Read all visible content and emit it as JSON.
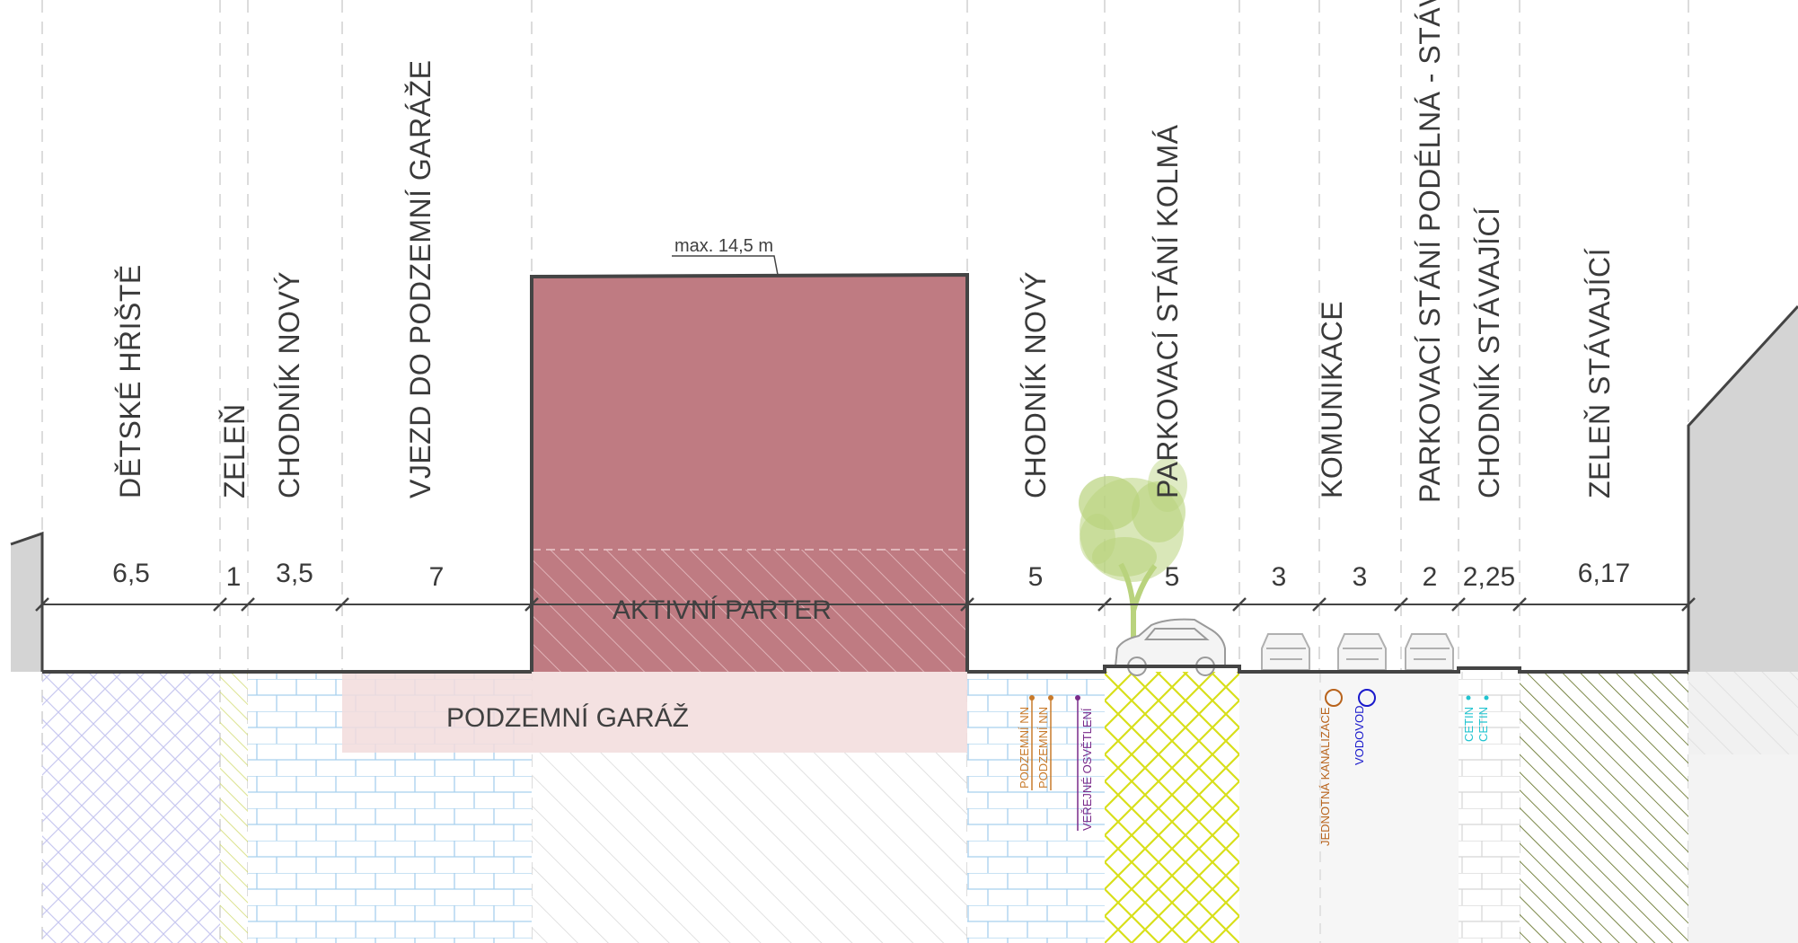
{
  "zones": [
    {
      "label": "DĚTSKÉ HŘIŠTĚ"
    },
    {
      "label": "ZELEŇ"
    },
    {
      "label": "CHODNÍK NOVÝ"
    },
    {
      "label": "VJEZD DO PODZEMNÍ GARÁŽE"
    },
    {
      "label": "CHODNÍK NOVÝ"
    },
    {
      "label": "PARKOVACÍ STÁNÍ KOLMÁ"
    },
    {
      "label": "KOMUNIKACE"
    },
    {
      "label": "PARKOVACÍ STÁNÍ PODÉLNÁ - STÁV."
    },
    {
      "label": "CHODNÍK STÁVAJÍCÍ"
    },
    {
      "label": "ZELEŇ STÁVAJÍCÍ"
    }
  ],
  "dimensions": [
    "6,5",
    "1",
    "3,5",
    "7",
    "5",
    "5",
    "3",
    "3",
    "2",
    "2,25",
    "6,17"
  ],
  "building": {
    "height_note": "max. 14,5 m",
    "ground_floor_label": "AKTIVNÍ PARTER",
    "garage_label": "PODZEMNÍ GARÁŽ"
  },
  "utilities": [
    {
      "label": "PODZEMNÍ NN",
      "color": "#c87a2a"
    },
    {
      "label": "PODZEMNÍ NN",
      "color": "#c87a2a"
    },
    {
      "label": "VEŘEJNÉ OSVĚTLENÍ",
      "color": "#7a2a8a"
    },
    {
      "label": "JEDNOTNÁ KANALIZACE",
      "color": "#b8631c"
    },
    {
      "label": "VODOVOD",
      "color": "#1a1acc"
    },
    {
      "label": "CETIN",
      "color": "#22c4d0"
    },
    {
      "label": "CETIN",
      "color": "#22c4d0"
    }
  ],
  "colors": {
    "building": "#bf7b82",
    "garage": "#f2dcdc",
    "tree": "#b9d37d",
    "green_yellow": "#d8df1a",
    "green_dark": "#5a6a1a",
    "paving": "#a8d0ee",
    "playground": "#c8c8f0",
    "neighbor": "#d4d4d4"
  }
}
